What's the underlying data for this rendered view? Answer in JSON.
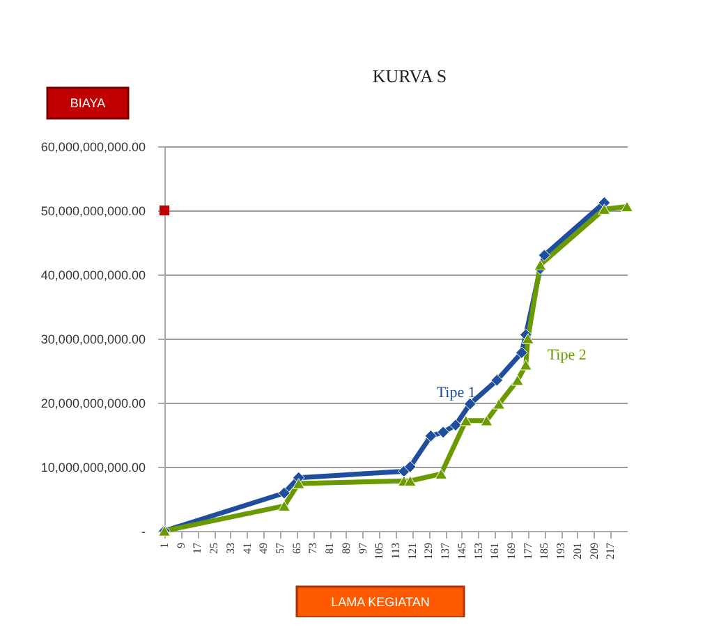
{
  "chart_data": {
    "type": "line",
    "title": "KURVA S",
    "xlabel": "LAMA KEGIATAN",
    "ylabel": "BIAYA",
    "xlim": [
      1,
      225
    ],
    "xticks": [
      1,
      9,
      17,
      25,
      33,
      41,
      49,
      57,
      65,
      73,
      81,
      89,
      97,
      105,
      113,
      121,
      129,
      137,
      145,
      153,
      161,
      169,
      177,
      185,
      193,
      201,
      209,
      217
    ],
    "ylim": [
      0,
      60000000000
    ],
    "yticks": [
      {
        "value": 0,
        "label": "-"
      },
      {
        "value": 10000000000,
        "label": "10,000,000,000.00"
      },
      {
        "value": 20000000000,
        "label": "20,000,000,000.00"
      },
      {
        "value": 30000000000,
        "label": "30,000,000,000.00"
      },
      {
        "value": 40000000000,
        "label": "40,000,000,000.00"
      },
      {
        "value": 50000000000,
        "label": "50,000,000,000.00"
      },
      {
        "value": 60000000000,
        "label": "60,000,000,000.00"
      }
    ],
    "grid": "y",
    "legend": false,
    "series": [
      {
        "name": "Tipe 1",
        "color": "#1f4e9c",
        "marker": "diamond",
        "x": [
          1,
          59,
          66,
          117,
          120,
          130,
          136,
          142,
          149,
          162,
          174,
          176,
          183,
          185,
          214
        ],
        "values": [
          0,
          5900000000,
          8300000000,
          9300000000,
          10000000000,
          14800000000,
          15400000000,
          16500000000,
          19800000000,
          23500000000,
          27800000000,
          30600000000,
          40900000000,
          43000000000,
          51200000000
        ]
      },
      {
        "name": "Tipe 2",
        "color": "#6a9a00",
        "marker": "triangle",
        "x": [
          1,
          59,
          66,
          117,
          120,
          135,
          147,
          157,
          163,
          172,
          176,
          177,
          183,
          214,
          225
        ],
        "values": [
          0,
          3900000000,
          7400000000,
          7800000000,
          7800000000,
          8900000000,
          17200000000,
          17200000000,
          19800000000,
          23500000000,
          25900000000,
          30000000000,
          41500000000,
          50200000000,
          50600000000
        ]
      },
      {
        "type": "scatter",
        "color": "#c00000",
        "marker": "square",
        "x": [
          1
        ],
        "values": [
          50000000000
        ]
      }
    ]
  }
}
